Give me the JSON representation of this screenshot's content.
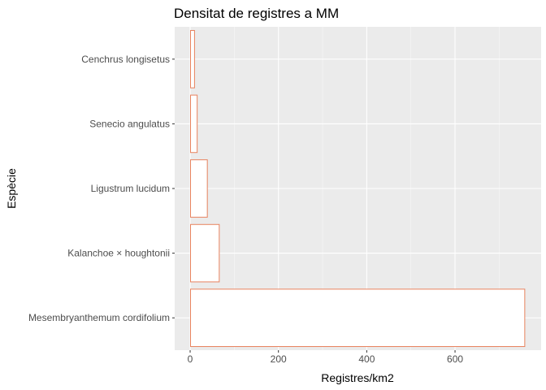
{
  "chart_data": {
    "type": "bar",
    "orientation": "horizontal",
    "title": "Densitat de registres a MM",
    "xlabel": "Registres/km2",
    "ylabel": "Espècie",
    "categories": [
      "Mesembryanthemum cordifolium",
      "Kalanchoe × houghtonii",
      "Ligustrum lucidum",
      "Senecio angulatus",
      "Cenchrus longisetus"
    ],
    "values": [
      757,
      65,
      38,
      15,
      9
    ],
    "xlim": [
      -35,
      795
    ],
    "xticks": [
      0,
      200,
      400,
      600
    ],
    "grid": true,
    "legend": "none",
    "colors": {
      "panel_background": "#ebebeb",
      "grid_major": "#ffffff",
      "bar_fill": "#ffffff",
      "bar_outline": "#e8825e",
      "tick_text": "#4d4d4d",
      "tick_mark": "#333333"
    }
  }
}
